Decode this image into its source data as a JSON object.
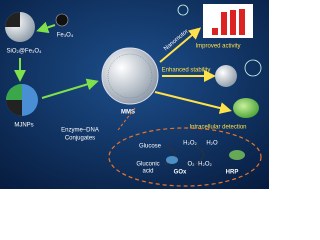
{
  "labels": {
    "fe3o4": "Fe₃O₄",
    "sio2_fe3o4": "SiO₂@Fe₃O₄",
    "mjnps": "MJNPs",
    "enzyme_dna": [
      "Enzyme–DNA",
      "Conjugates"
    ],
    "mms": "MMS",
    "nanomotor": "Nanomotor",
    "improved_activity": "Improved activity",
    "enhanced_stability": "Enhanced stability",
    "intracellular_detection": "Intracellular detection"
  },
  "cascade": {
    "glucose": "Glucose",
    "gluconic_acid": [
      "Gluconic",
      "acid"
    ],
    "gox": "GOx",
    "h2o2_top": "H₂O₂",
    "h2o_top": "H₂O",
    "o2": "O₂",
    "h2o2_bottom": "H₂O₂",
    "hrp": "HRP"
  }
}
